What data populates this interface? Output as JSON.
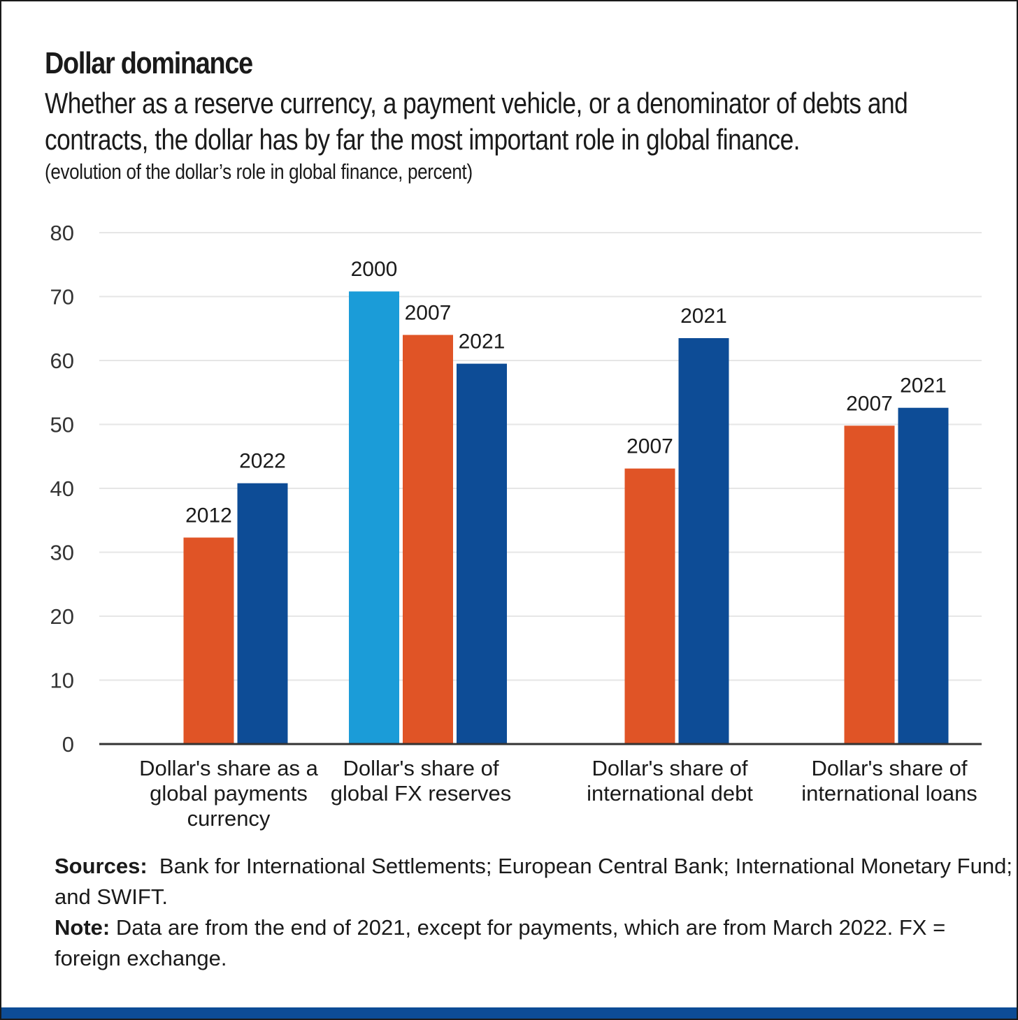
{
  "header": {
    "title": "Dollar dominance",
    "subtitle_line1": "Whether as a reserve currency, a payment vehicle, or a denominator of debts and",
    "subtitle_line2": "contracts, the dollar has by far the most important role in global finance.",
    "unit_note": "(evolution of the dollar’s role in global finance, percent)"
  },
  "chart_data": {
    "type": "bar",
    "ylim": [
      0,
      80
    ],
    "yticks": [
      "0",
      "10",
      "20",
      "30",
      "40",
      "50",
      "60",
      "70",
      "80"
    ],
    "grid": true,
    "legend": "none (years labeled above bars)",
    "colors": {
      "2000": "#1b9cd8",
      "2007": "#e05426",
      "2012": "#e05426",
      "2021": "#0d4c96",
      "2022": "#0d4c96"
    },
    "groups": [
      {
        "label_lines": [
          "Dollar's share as a",
          "global payments",
          "currency"
        ],
        "bars": [
          {
            "year": "2012",
            "value": 32.3
          },
          {
            "year": "2022",
            "value": 40.8
          }
        ]
      },
      {
        "label_lines": [
          "Dollar's share of",
          "global FX reserves"
        ],
        "bars": [
          {
            "year": "2000",
            "value": 70.8
          },
          {
            "year": "2007",
            "value": 64.0
          },
          {
            "year": "2021",
            "value": 59.5
          }
        ]
      },
      {
        "label_lines": [
          "Dollar's share of",
          "international debt"
        ],
        "bars": [
          {
            "year": "2007",
            "value": 43.1
          },
          {
            "year": "2021",
            "value": 63.5
          }
        ]
      },
      {
        "label_lines": [
          "Dollar's share of",
          "international loans"
        ],
        "bars": [
          {
            "year": "2007",
            "value": 49.8
          },
          {
            "year": "2021",
            "value": 52.6
          }
        ]
      }
    ]
  },
  "footer": {
    "sources_label": "Sources:",
    "sources_text": "Bank for International Settlements; European Central Bank; International Monetary Fund; and SWIFT.",
    "note_label": "Note:",
    "note_text": "Data are from the end of 2021, except for payments, which are from March 2022. FX = foreign exchange."
  },
  "colors": {
    "accent_bar": "#0d4c96",
    "grid": "#e6e6e6",
    "axis": "#333333"
  }
}
